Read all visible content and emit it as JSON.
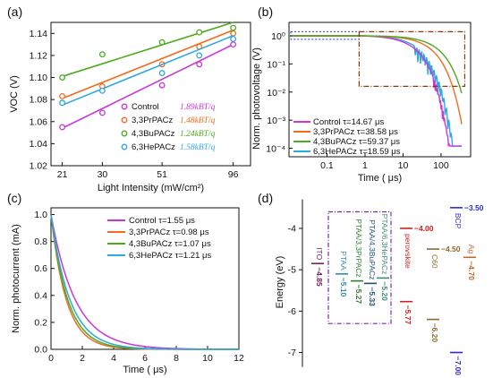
{
  "colors": {
    "control": "#c837d6",
    "prpacz": "#f26b1d",
    "bupacz": "#4eaa1f",
    "hepacz": "#2fa8e0"
  },
  "chart_data": [
    {
      "panel": "(a)",
      "type": "scatter",
      "xlabel": "Light Intensity (mW/cm²)",
      "ylabel": "VOC (V)",
      "xscale": "log",
      "xlim": [
        19,
        112
      ],
      "ylim": [
        1.02,
        1.15
      ],
      "xticks": [
        21,
        30,
        51,
        96
      ],
      "yticks": [
        1.02,
        1.04,
        1.06,
        1.08,
        1.1,
        1.12,
        1.14
      ],
      "ytick_labels": [
        "1.02",
        "1.04",
        "1.06",
        "1.08",
        "1.10",
        "1.12",
        "1.14"
      ],
      "legend_position": "bottom-right",
      "x": [
        21,
        30,
        51,
        71,
        96
      ],
      "series": [
        {
          "name": "Control",
          "slope": "1.89kBT/q",
          "color": "control",
          "values": [
            1.055,
            1.068,
            1.093,
            1.112,
            1.13
          ],
          "fit": [
            1.054,
            1.13
          ]
        },
        {
          "name": "3,3PrPACz",
          "slope": "1.48kBT/q",
          "color": "prpacz",
          "values": [
            1.083,
            1.092,
            1.112,
            1.128,
            1.14
          ],
          "fit": [
            1.081,
            1.143
          ]
        },
        {
          "name": "4,3BuPACz",
          "slope": "1.24kBT/q",
          "color": "bupacz",
          "values": [
            1.1,
            1.121,
            1.132,
            1.141,
            1.145
          ],
          "fit": [
            1.101,
            1.15
          ]
        },
        {
          "name": "6,3HePACz",
          "slope": "1.58kBT/q",
          "color": "hepacz",
          "values": [
            1.077,
            1.088,
            1.104,
            1.12,
            1.135
          ],
          "fit": [
            1.075,
            1.138
          ]
        }
      ]
    },
    {
      "panel": "(b)",
      "type": "line",
      "xlabel": "Time ( μs)",
      "ylabel": "Norm. photovoltage (V)",
      "xscale": "log",
      "yscale": "log",
      "xlim": [
        0.01,
        600
      ],
      "ylim": [
        5e-05,
        3
      ],
      "xtick_labels": [
        "0.1",
        "1",
        "10",
        "100"
      ],
      "ytick_labels": [
        "10⁰",
        "10⁻¹",
        "10⁻²",
        "10⁻³",
        "10⁻⁴"
      ],
      "legend_position": "bottom-left",
      "series": [
        {
          "name": "Control",
          "tau": "τ=14.67 μs",
          "color": "control",
          "tau_us": 14.67
        },
        {
          "name": "3,3PrPACz",
          "tau": "τ=38.58 μs",
          "color": "prpacz",
          "tau_us": 38.58
        },
        {
          "name": "4,3BuPACz",
          "tau": "τ=59.37 μs",
          "color": "bupacz",
          "tau_us": 59.37
        },
        {
          "name": "6,3HePACz",
          "tau": "τ=18.59 μs",
          "color": "hepacz",
          "tau_us": 18.59
        }
      ]
    },
    {
      "panel": "(c)",
      "type": "line",
      "xlabel": "Time ( μs)",
      "ylabel": "Norm. photocurrent (mA)",
      "xlim": [
        0,
        12
      ],
      "ylim": [
        0,
        1.05
      ],
      "xticks": [
        0,
        2,
        4,
        6,
        8,
        10,
        12
      ],
      "yticks": [
        0.0,
        0.2,
        0.4,
        0.6,
        0.8,
        1.0
      ],
      "ytick_labels": [
        "0.0",
        "0.2",
        "0.4",
        "0.6",
        "0.8",
        "1.0"
      ],
      "legend_position": "top-right",
      "series": [
        {
          "name": "Control",
          "tau": "τ=1.55 μs",
          "color": "control",
          "tau_us": 1.55
        },
        {
          "name": "3,3PrPACz",
          "tau": "τ=0.98 μs",
          "color": "prpacz",
          "tau_us": 0.98
        },
        {
          "name": "4,3BuPACz",
          "tau": "τ=1.07 μs",
          "color": "bupacz",
          "tau_us": 1.07
        },
        {
          "name": "6,3HePACz",
          "tau": "τ=1.21 μs",
          "color": "hepacz",
          "tau_us": 1.21
        }
      ]
    },
    {
      "panel": "(d)",
      "type": "diagram",
      "ylabel": "Energy (eV)",
      "ylim": [
        -7.4,
        -3.2
      ],
      "yticks": [
        -4,
        -5,
        -6,
        -7
      ],
      "ytick_labels": [
        "-4",
        "-5",
        "-6",
        "-7"
      ],
      "levels": [
        {
          "label": "ITO",
          "value": "−4.85",
          "energy": -4.85,
          "color": "#7b1f5a"
        },
        {
          "label": "PTAA",
          "value": "−5.10",
          "energy": -5.1,
          "color": "#2e8b9a"
        },
        {
          "label": "PTAA/3,3PrPACz",
          "value": "−5.27",
          "energy": -5.27,
          "color": "#2e7d32"
        },
        {
          "label": "PTAA/4,3BuPACz",
          "value": "−5.33",
          "energy": -5.33,
          "color": "#1f4e79"
        },
        {
          "label": "PTAA/6,3HePACz",
          "value": "−5.20",
          "energy": -5.2,
          "color": "#3a8f6f"
        },
        {
          "label": "perovskite",
          "top": "−4.00",
          "bottom": "−5.77",
          "top_energy": -4.0,
          "bottom_energy": -5.77,
          "color": "#d32020"
        },
        {
          "label": "C60",
          "top": "−4.50",
          "bottom": "−6.20",
          "top_energy": -4.5,
          "bottom_energy": -6.2,
          "color": "#8b6a2b"
        },
        {
          "label": "BCP",
          "top": "−3.50",
          "bottom": "−7.00",
          "top_energy": -3.5,
          "bottom_energy": -7.0,
          "color": "#2b2bd6"
        },
        {
          "label": "Ag",
          "value": "−4.70",
          "energy": -4.7,
          "color": "#c26a2b"
        }
      ]
    }
  ]
}
